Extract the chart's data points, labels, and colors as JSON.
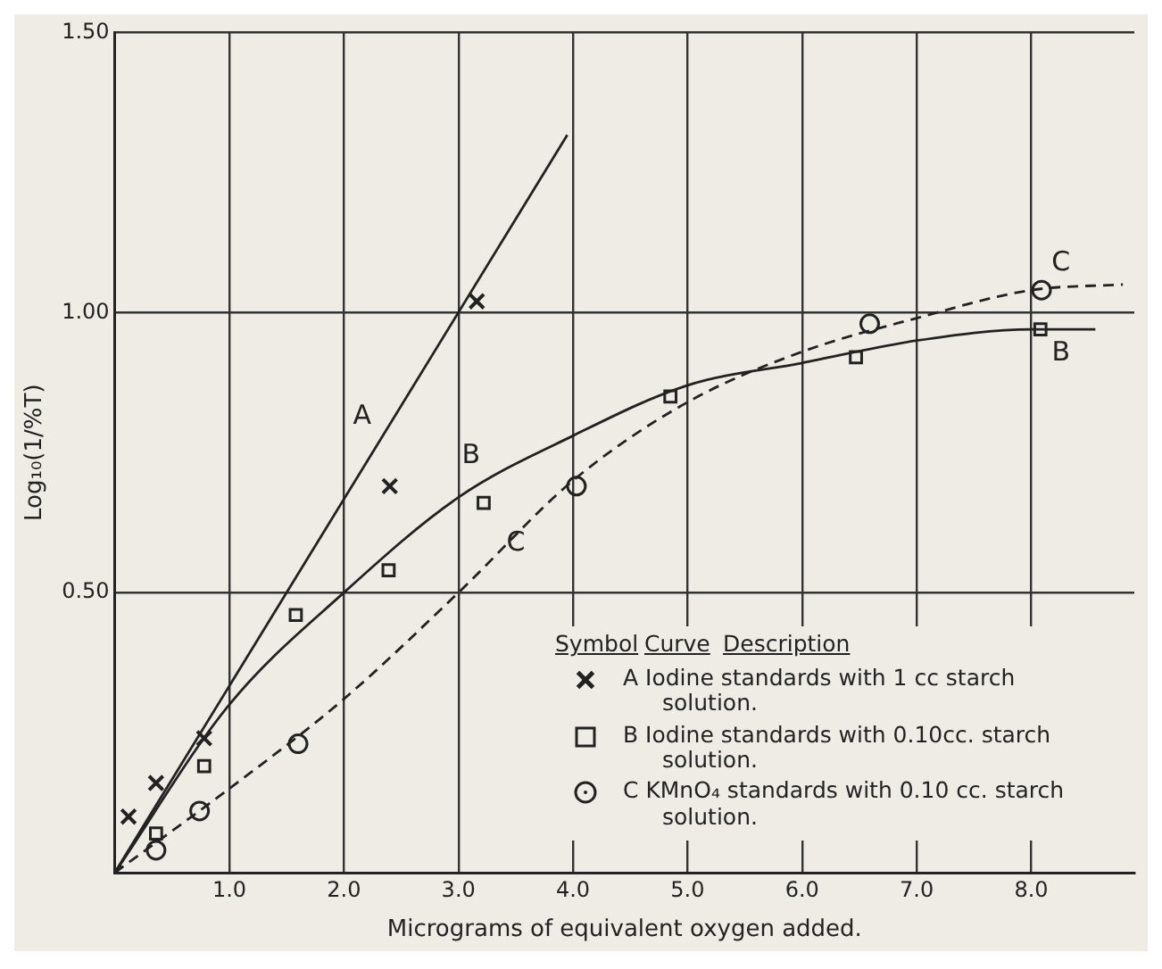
{
  "chart_data": {
    "type": "scatter",
    "xlabel": "Micrograms of equivalent oxygen added.",
    "ylabel": "Log₁₀(1/%T)",
    "xlim": [
      0,
      8.9
    ],
    "ylim": [
      0,
      1.5
    ],
    "xticks": [
      {
        "value": 0,
        "label": null
      },
      {
        "value": 1,
        "label": "1.0"
      },
      {
        "value": 2,
        "label": "2.0"
      },
      {
        "value": 3,
        "label": "3.0"
      },
      {
        "value": 4,
        "label": "4.0"
      },
      {
        "value": 5,
        "label": "5.0"
      },
      {
        "value": 6,
        "label": "6.0"
      },
      {
        "value": 7,
        "label": "7.0"
      },
      {
        "value": 8,
        "label": "8.0"
      }
    ],
    "yticks": [
      {
        "value": 0,
        "label": null
      },
      {
        "value": 0.5,
        "label": "0.50"
      },
      {
        "value": 1,
        "label": "1.00"
      },
      {
        "value": 1.5,
        "label": "1.50"
      }
    ],
    "grid": true,
    "legend": "bottom right",
    "series": [
      {
        "type": "scatter",
        "name": "A Iodine standards with 1 cc starch solution.",
        "color": "#222222",
        "marker": "cross",
        "x": [
          0,
          0.12,
          0.36,
          0.78,
          2.4,
          3.16
        ],
        "values": [
          0,
          0.1,
          0.16,
          0.24,
          0.69,
          1.02
        ]
      },
      {
        "type": "scatter",
        "name": "B Iodine standards with 0.10cc. starch solution.",
        "color": "#222222",
        "marker": "square",
        "x": [
          0.36,
          0.78,
          1.58,
          2.39,
          3.22,
          4.85,
          6.47,
          8.08
        ],
        "values": [
          0.07,
          0.19,
          0.46,
          0.54,
          0.66,
          0.85,
          0.92,
          0.97
        ]
      },
      {
        "type": "scatter",
        "name": "C KMnO₄ standards with 0.10 cc. starch solution.",
        "color": "#222222",
        "marker": "circle",
        "x": [
          0.36,
          0.74,
          1.6,
          4.03,
          6.59,
          8.09
        ],
        "values": [
          0.04,
          0.11,
          0.23,
          0.69,
          0.98,
          1.04
        ]
      },
      {
        "type": "line",
        "color": "#222222",
        "line_style": "solid",
        "x": [
          0,
          3.95
        ],
        "values": [
          0,
          1.317
        ]
      },
      {
        "type": "line",
        "color": "#222222",
        "line_style": "solid",
        "x": [
          0,
          1,
          2,
          3,
          4,
          5,
          6,
          7,
          8,
          8.56
        ],
        "values": [
          0,
          0.3,
          0.5,
          0.67,
          0.78,
          0.87,
          0.91,
          0.95,
          0.97,
          0.97
        ]
      },
      {
        "type": "line",
        "color": "#222222",
        "line_style": "dashed",
        "x": [
          0,
          1,
          2,
          3,
          4,
          5,
          6,
          7,
          8,
          8.8
        ],
        "values": [
          0,
          0.15,
          0.31,
          0.5,
          0.7,
          0.84,
          0.93,
          0.99,
          1.04,
          1.05
        ]
      }
    ],
    "annotations": [
      {
        "text": "A",
        "x": 2.3,
        "y": 0.77
      },
      {
        "text": "B",
        "x": 3.25,
        "y": 0.7
      },
      {
        "text": "C",
        "x": 3.64,
        "y": 0.63
      },
      {
        "text": "C",
        "x": 8.4,
        "y": 1.045
      },
      {
        "text": "B",
        "x": 8.4,
        "y": 0.97
      },
      "Symbol",
      "Curve",
      "Description"
    ]
  }
}
